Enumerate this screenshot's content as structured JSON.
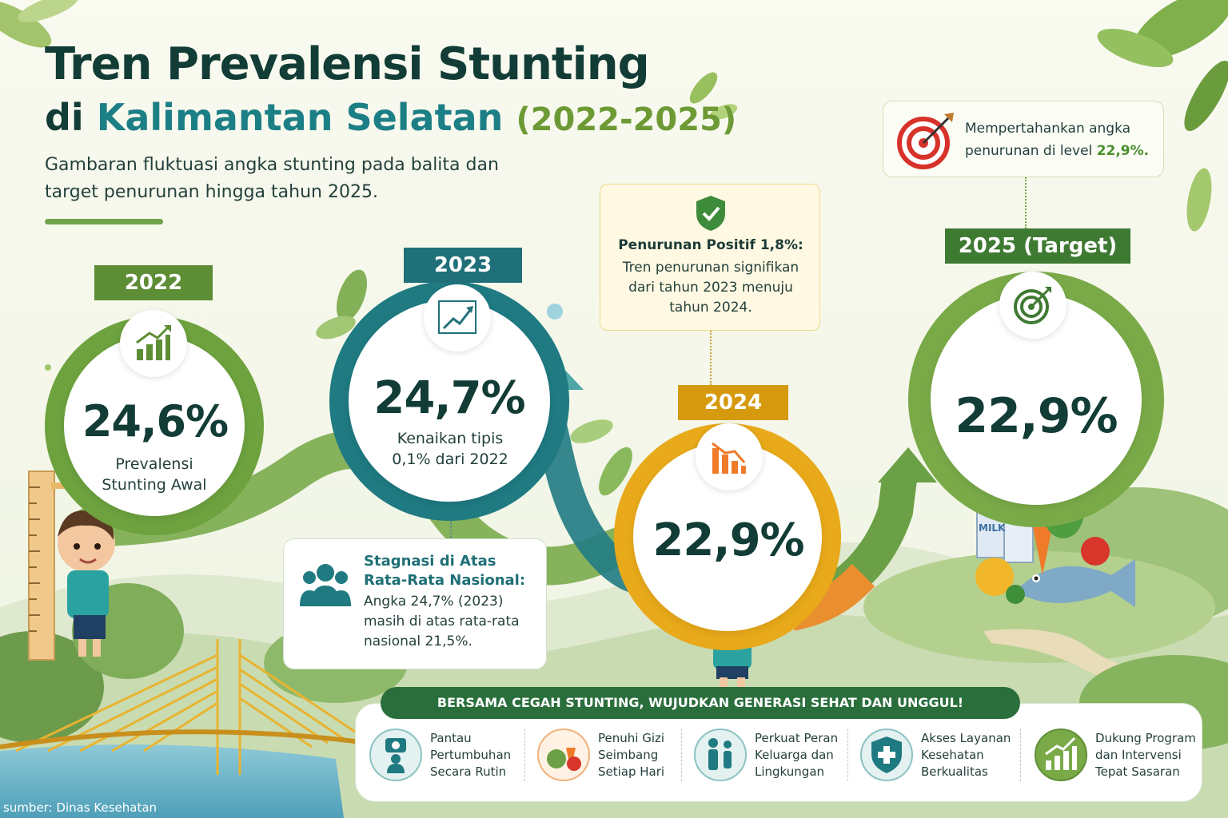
{
  "title": {
    "line1": "Tren Prevalensi Stunting",
    "line2_prefix": "di",
    "line2_place": "Kalimantan Selatan",
    "line2_years": "(2022-2025)"
  },
  "subtitle": "Gambaran fluktuasi angka stunting pada balita dan target penurunan hingga tahun 2025.",
  "stages": [
    {
      "year": "2022",
      "value": "24,6%",
      "caption": "Prevalensi Stunting Awal",
      "icon": "bar-chart-up-icon",
      "color": "#6da23e"
    },
    {
      "year": "2023",
      "value": "24,7%",
      "caption": "Kenaikan tipis 0,1% dari 2022",
      "icon": "line-chart-up-icon",
      "color": "#1f7a82"
    },
    {
      "year": "2024",
      "value": "22,9%",
      "caption": "",
      "icon": "bar-chart-down-icon",
      "color": "#e8a91a"
    },
    {
      "year": "2025 (Target)",
      "value": "22,9%",
      "caption": "",
      "icon": "target-icon",
      "color": "#7aaa48"
    }
  ],
  "callouts": {
    "stagnation_title": "Stagnasi di Atas Rata-Rata Nasional:",
    "stagnation_body": "Angka 24,7% (2023) masih di atas rata-rata nasional 21,5%.",
    "decrease_title": "Penurunan Positif 1,8%:",
    "decrease_body": "Tren penurunan signifikan dari tahun 2023 menuju tahun 2024.",
    "target_body_prefix": "Mempertahankan angka penurunan di level",
    "target_body_value": "22,9%."
  },
  "banner": "BERSAMA CEGAH STUNTING, WUJUDKAN GENERASI SEHAT DAN UNGGUL!",
  "actions": [
    {
      "label": "Pantau Pertumbuhan Secara Rutin",
      "icon": "baby-scale-icon"
    },
    {
      "label": "Penuhi Gizi Seimbang Setiap Hari",
      "icon": "vegetables-icon"
    },
    {
      "label": "Perkuat Peran Keluarga dan Lingkungan",
      "icon": "family-icon"
    },
    {
      "label": "Akses Layanan Kesehatan Berkualitas",
      "icon": "health-shield-icon"
    },
    {
      "label": "Dukung Program dan Intervensi Tepat Sasaran",
      "icon": "growth-chart-icon"
    }
  ],
  "milk_label": "MILK",
  "source": "sumber: Dinas Kesehatan",
  "colors": {
    "primary_dark": "#123c36",
    "teal": "#1f7a82",
    "green": "#6da23e",
    "amber": "#e8a91a",
    "banner_green": "#2a6e3c"
  }
}
